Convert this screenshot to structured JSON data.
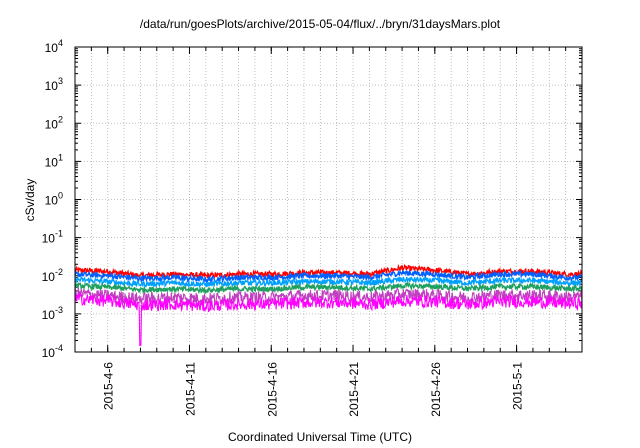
{
  "chart_data": {
    "type": "line",
    "title": "/data/run/goesPlots/archive/2015-05-04/flux/../bryn/31daysMars.plot",
    "xlabel": "Coordinated Universal Time (UTC)",
    "ylabel": "cSv/day",
    "y_scale": "log",
    "ylim": [
      0.0001,
      10000
    ],
    "xlim": [
      "2015-04-04",
      "2015-05-05"
    ],
    "grid": true,
    "legend": "none",
    "y_ticks": [
      {
        "base": "10",
        "exp": "-4"
      },
      {
        "base": "10",
        "exp": "-3"
      },
      {
        "base": "10",
        "exp": "-2"
      },
      {
        "base": "10",
        "exp": "-1"
      },
      {
        "base": "10",
        "exp": "0"
      },
      {
        "base": "10",
        "exp": "1"
      },
      {
        "base": "10",
        "exp": "2"
      },
      {
        "base": "10",
        "exp": "3"
      },
      {
        "base": "10",
        "exp": "4"
      }
    ],
    "x_tick_labels": [
      "2015-4-6",
      "2015-4-11",
      "2015-4-16",
      "2015-4-21",
      "2015-4-26",
      "2015-5-1"
    ],
    "x_tick_dates": [
      "2015-04-06",
      "2015-04-11",
      "2015-04-16",
      "2015-04-21",
      "2015-04-26",
      "2015-05-01"
    ],
    "x": [
      "2015-04-04",
      "2015-04-06",
      "2015-04-08",
      "2015-04-10",
      "2015-04-12",
      "2015-04-14",
      "2015-04-16",
      "2015-04-18",
      "2015-04-20",
      "2015-04-22",
      "2015-04-24",
      "2015-04-26",
      "2015-04-28",
      "2015-04-30",
      "2015-05-02",
      "2015-05-04"
    ],
    "series": [
      {
        "color": "#ff0000",
        "values": [
          0.014,
          0.013,
          0.01,
          0.011,
          0.01,
          0.011,
          0.011,
          0.012,
          0.012,
          0.011,
          0.016,
          0.014,
          0.011,
          0.013,
          0.013,
          0.011
        ]
      },
      {
        "color": "#0060ff",
        "values": [
          0.011,
          0.01,
          0.0085,
          0.009,
          0.008,
          0.009,
          0.009,
          0.01,
          0.01,
          0.009,
          0.012,
          0.011,
          0.009,
          0.011,
          0.011,
          0.009
        ]
      },
      {
        "color": "#00a0ff",
        "values": [
          0.008,
          0.007,
          0.006,
          0.0065,
          0.006,
          0.0065,
          0.0065,
          0.007,
          0.007,
          0.0065,
          0.008,
          0.0075,
          0.0065,
          0.0075,
          0.0075,
          0.0065
        ]
      },
      {
        "color": "#20a060",
        "values": [
          0.0055,
          0.005,
          0.0043,
          0.0045,
          0.0042,
          0.0045,
          0.0045,
          0.005,
          0.005,
          0.0045,
          0.0055,
          0.0052,
          0.0046,
          0.0052,
          0.0052,
          0.0046
        ]
      },
      {
        "color": "#c040c0",
        "values": [
          0.0035,
          0.003,
          0.0025,
          0.0027,
          0.0025,
          0.0027,
          0.0027,
          0.003,
          0.003,
          0.0027,
          0.0033,
          0.0031,
          0.0027,
          0.0031,
          0.0031,
          0.0028
        ]
      },
      {
        "color": "#ff00ff",
        "values": [
          0.0025,
          0.0022,
          0.0017,
          0.0018,
          0.0016,
          0.0018,
          0.0018,
          0.002,
          0.002,
          0.0018,
          0.0022,
          0.0021,
          0.0018,
          0.0021,
          0.0021,
          0.0019
        ]
      }
    ],
    "dip": {
      "color": "#ff00ff",
      "x": "2015-04-08",
      "value": 0.00015
    }
  }
}
